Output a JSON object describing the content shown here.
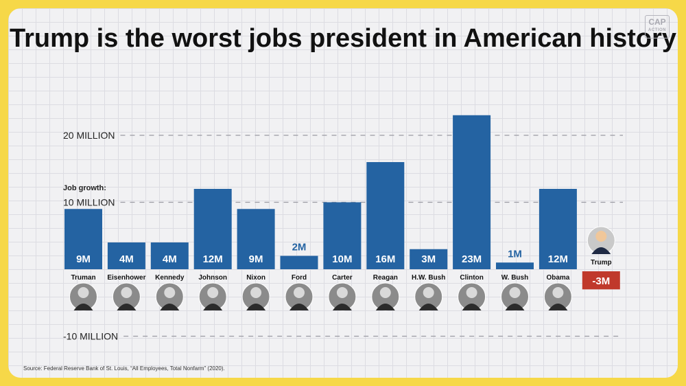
{
  "title": "Trump is the worst jobs president in American history",
  "logo": {
    "line1": "CAP",
    "line2": "ACTION"
  },
  "source": "Source: Federal Reserve Bank of St. Louis, “All Employees, Total Nonfarm” (2020).",
  "colors": {
    "positive": "#2463a2",
    "negative": "#c0392b",
    "label_dark": "#2463a2"
  },
  "chart_data": {
    "type": "bar",
    "title": "Trump is the worst jobs president in American history",
    "ylabel": "Job growth:",
    "ylim": [
      -10,
      23
    ],
    "yticks": [
      {
        "value": 20,
        "label": "20 MILLION"
      },
      {
        "value": 10,
        "label": "10 MILLION"
      },
      {
        "value": -10,
        "label": "-10 MILLION"
      }
    ],
    "grid": true,
    "categories": [
      "Truman",
      "Eisenhower",
      "Kennedy",
      "Johnson",
      "Nixon",
      "Ford",
      "Carter",
      "Reagan",
      "H.W. Bush",
      "Clinton",
      "W. Bush",
      "Obama",
      "Trump"
    ],
    "values": [
      9,
      4,
      4,
      12,
      9,
      2,
      10,
      16,
      3,
      23,
      1,
      12,
      -3
    ],
    "value_labels": [
      "9M",
      "4M",
      "4M",
      "12M",
      "9M",
      "2M",
      "10M",
      "16M",
      "3M",
      "23M",
      "1M",
      "12M",
      "-3M"
    ],
    "units": "millions of jobs"
  }
}
